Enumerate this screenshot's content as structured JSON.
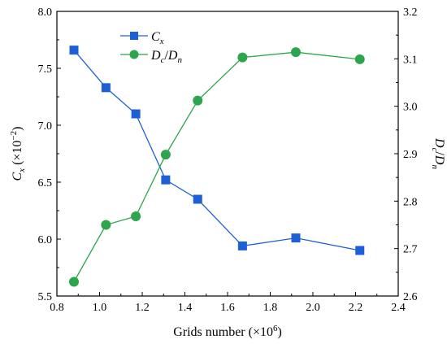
{
  "chart_data": {
    "type": "line",
    "x_axis": {
      "label": "Grids number (×10",
      "label_sup": "6",
      "label_close": ")",
      "range": [
        0.8,
        2.4
      ],
      "ticks": [
        "0.8",
        "1.0",
        "1.2",
        "1.4",
        "1.6",
        "1.8",
        "2.0",
        "2.2",
        "2.4"
      ]
    },
    "y_left": {
      "label_main": "C",
      "label_sub": "x",
      "label_mult": " (×10",
      "label_sup": "−2",
      "label_close": ")",
      "range": [
        5.5,
        8.0
      ],
      "ticks": [
        "5.5",
        "6.0",
        "6.5",
        "7.0",
        "7.5",
        "8.0"
      ]
    },
    "y_right": {
      "label_a": "D",
      "label_a_sub": "c",
      "label_slash": "/",
      "label_b": "D",
      "label_b_sub": "n",
      "range": [
        2.6,
        3.2
      ],
      "ticks": [
        "2.6",
        "2.7",
        "2.8",
        "2.9",
        "3.0",
        "3.1",
        "3.2"
      ]
    },
    "series": [
      {
        "name_main": "C",
        "name_sub": "x",
        "axis": "left",
        "color": "#1f5fd6",
        "marker": "square",
        "x": [
          0.88,
          1.03,
          1.17,
          1.31,
          1.46,
          1.67,
          1.92,
          2.22
        ],
        "y": [
          7.66,
          7.33,
          7.1,
          6.52,
          6.35,
          5.94,
          6.01,
          5.9
        ]
      },
      {
        "name_a": "D",
        "name_a_sub": "c",
        "name_slash": "/",
        "name_b": "D",
        "name_b_sub": "n",
        "axis": "right",
        "color": "#2ca54d",
        "marker": "circle",
        "x": [
          0.88,
          1.03,
          1.17,
          1.31,
          1.46,
          1.67,
          1.92,
          2.22
        ],
        "y": [
          2.63,
          2.75,
          2.768,
          2.898,
          3.012,
          3.103,
          3.114,
          3.099
        ]
      }
    ],
    "legend": "top-left",
    "grid": false
  }
}
